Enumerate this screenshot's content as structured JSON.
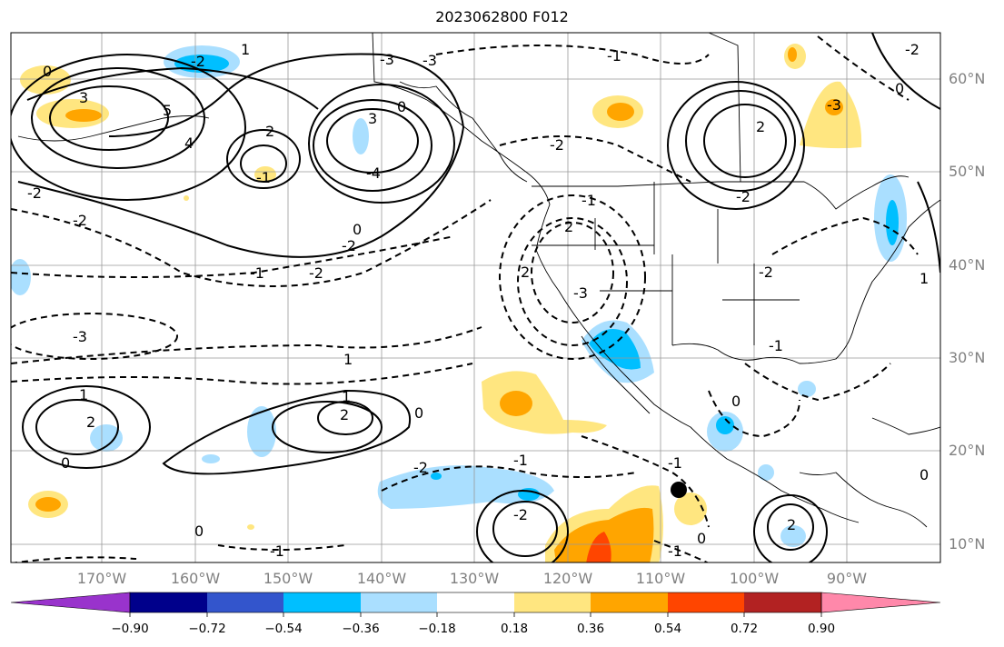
{
  "title": "2023062800 F012",
  "lat_labels": [
    "60°N",
    "50°N",
    "40°N",
    "30°N",
    "20°N",
    "10°N"
  ],
  "lon_labels": [
    "170°W",
    "160°W",
    "150°W",
    "140°W",
    "130°W",
    "120°W",
    "110°W",
    "100°W",
    "90°W"
  ],
  "colorbar": {
    "ticks": [
      "−0.90",
      "−0.72",
      "−0.54",
      "−0.36",
      "−0.18",
      "0.18",
      "0.36",
      "0.54",
      "0.72",
      "0.90"
    ],
    "colors": [
      "#9933cc",
      "#00008b",
      "#3355cc",
      "#00bfff",
      "#aadfff",
      "#ffffff",
      "#ffe680",
      "#ffa500",
      "#ff4500",
      "#b22222",
      "#ff88aa"
    ]
  },
  "contour_labels": [
    "0",
    "3",
    "5",
    "-2",
    "-2",
    "1",
    "2",
    "-1",
    "-2",
    "3",
    "-4",
    "4",
    "-3",
    "-3",
    "0",
    "-1",
    "-2",
    "-3",
    "2",
    "2",
    "-1",
    "-2",
    "-2",
    "0",
    "-3",
    "1",
    "-1",
    "1",
    "2",
    "2",
    "-2",
    "-2",
    "0",
    "-2",
    "-1",
    "0",
    "2",
    "-3",
    "1",
    "-2",
    "-1",
    "0",
    "-1",
    "-2",
    "2",
    "0",
    "0",
    "-1",
    "-1",
    "0",
    "1",
    "0"
  ],
  "marker": "storm-position-dot"
}
